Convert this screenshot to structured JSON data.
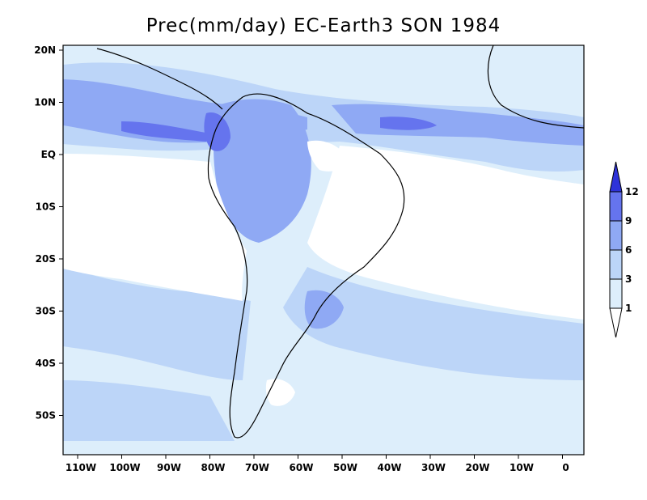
{
  "title": "Prec(mm/day) EC-Earth3 SON 1984",
  "lat_labels": [
    "20N",
    "10N",
    "EQ",
    "10S",
    "20S",
    "30S",
    "40S",
    "50S"
  ],
  "lon_labels": [
    "110W",
    "100W",
    "90W",
    "80W",
    "70W",
    "60W",
    "50W",
    "40W",
    "30W",
    "20W",
    "10W",
    "0"
  ],
  "colorbar": {
    "levels": [
      "1",
      "3",
      "6",
      "9",
      "12"
    ],
    "colors": [
      "#ddeefb",
      "#bcd5f8",
      "#8fa9f4",
      "#6574ee",
      "#2e32d9"
    ]
  },
  "colors": {
    "ocean_light": "#ddeefb",
    "band_3": "#bcd5f8",
    "band_6": "#8fa9f4",
    "band_9": "#6574ee",
    "band_12": "#2e32d9",
    "dry": "#ffffff",
    "coast": "#000000"
  }
}
